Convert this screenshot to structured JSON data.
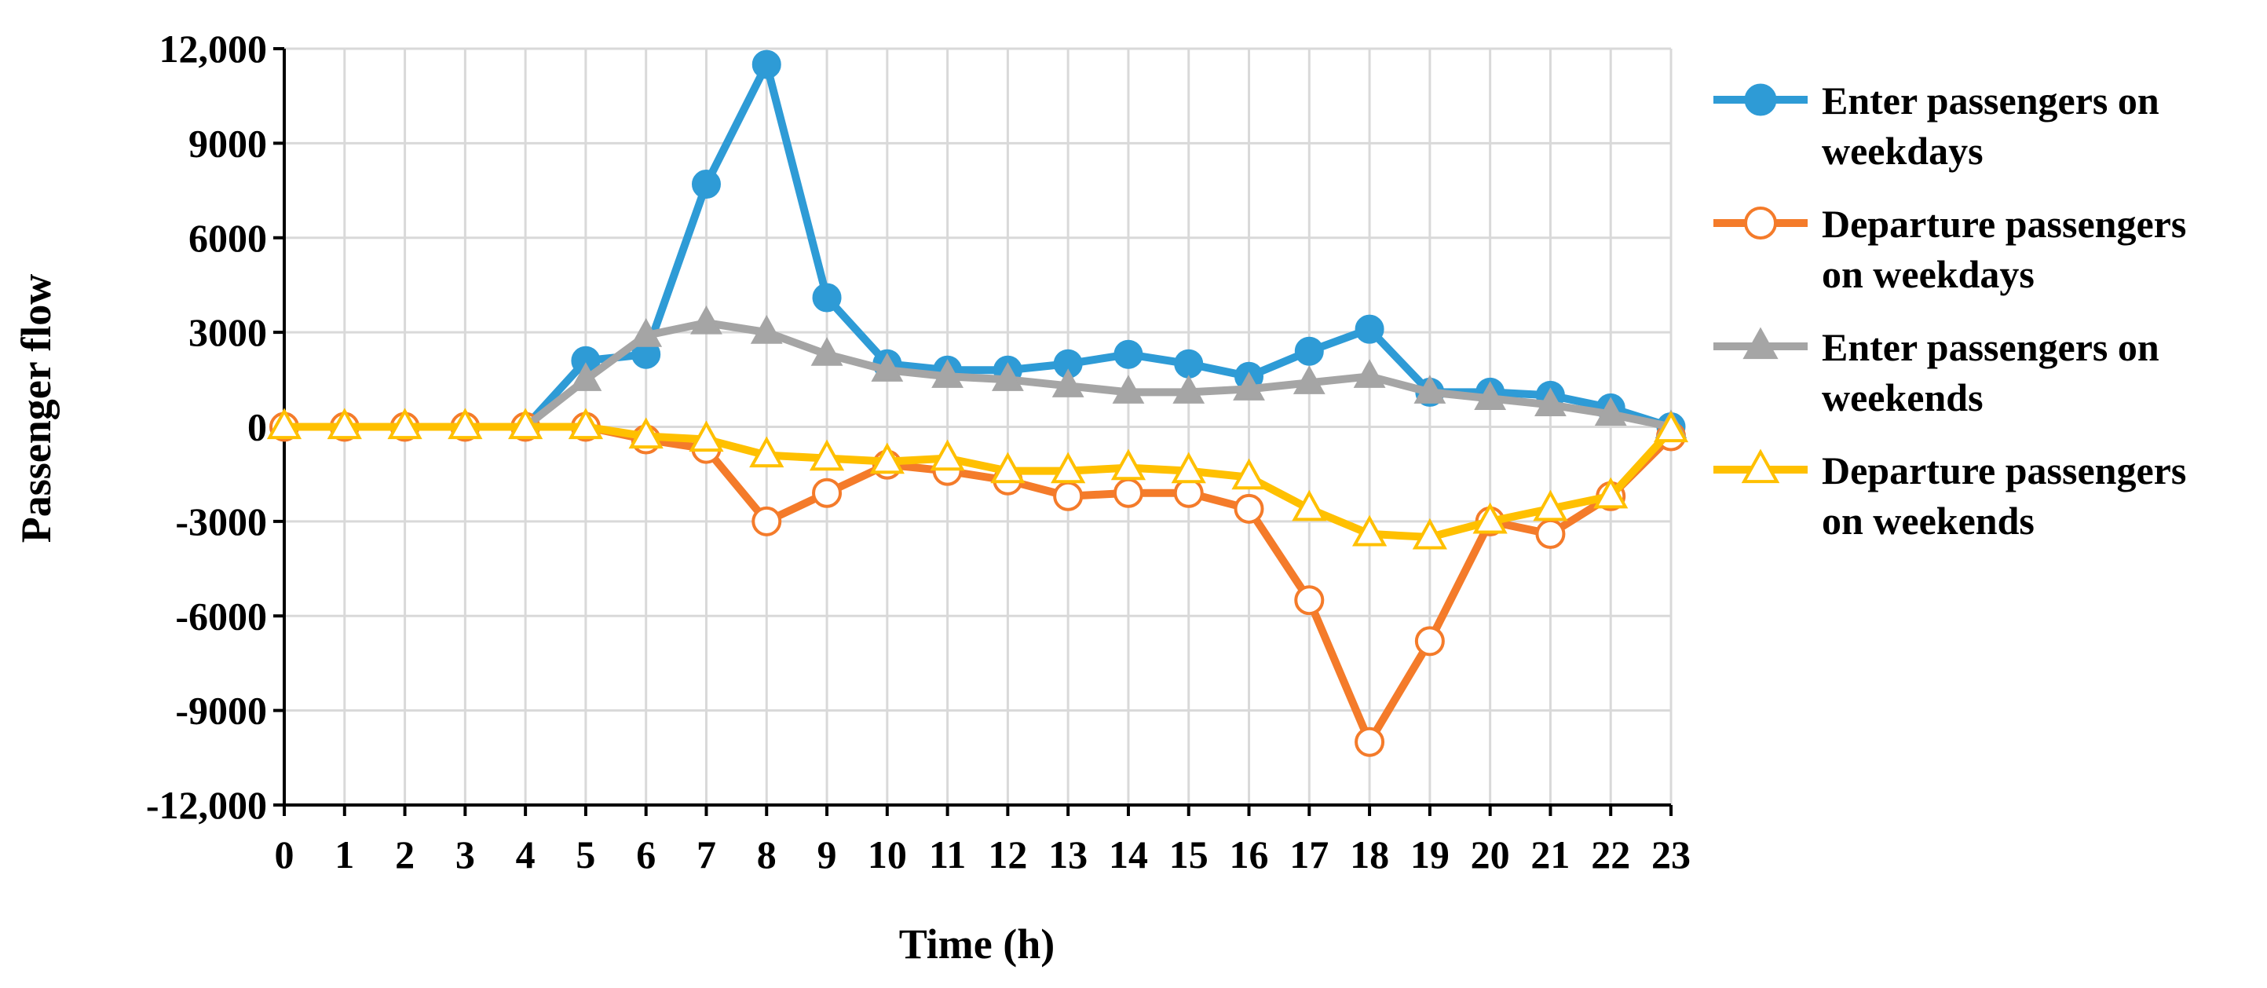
{
  "chart_data": {
    "type": "line",
    "title": "",
    "xlabel": "Time (h)",
    "ylabel": "Passenger flow",
    "x": [
      0,
      1,
      2,
      3,
      4,
      5,
      6,
      7,
      8,
      9,
      10,
      11,
      12,
      13,
      14,
      15,
      16,
      17,
      18,
      19,
      20,
      21,
      22,
      23
    ],
    "ylim": [
      -12000,
      12000
    ],
    "yticks": [
      12000,
      9000,
      6000,
      3000,
      0,
      -3000,
      -6000,
      -9000,
      -12000
    ],
    "ytick_labels": [
      "12,000",
      "9000",
      "6000",
      "3000",
      "0",
      "-3000",
      "-6000",
      "-9000",
      "-12,000"
    ],
    "grid": true,
    "legend_position": "right",
    "series": [
      {
        "name": "Enter passengers on weekdays",
        "legend_lines": [
          "Enter passengers on",
          "weekdays"
        ],
        "color": "#2E9BD6",
        "marker": "circle-filled",
        "values": [
          0,
          0,
          0,
          0,
          0,
          2100,
          2300,
          7700,
          11500,
          4100,
          2000,
          1800,
          1800,
          2000,
          2300,
          2000,
          1600,
          2400,
          3100,
          1100,
          1100,
          1000,
          600,
          0
        ]
      },
      {
        "name": "Departure passengers on weekdays",
        "legend_lines": [
          "Departure passengers",
          "on weekdays"
        ],
        "color": "#F47B2A",
        "marker": "circle-open",
        "values": [
          0,
          0,
          0,
          0,
          0,
          0,
          -400,
          -700,
          -3000,
          -2100,
          -1200,
          -1400,
          -1700,
          -2200,
          -2100,
          -2100,
          -2600,
          -5500,
          -10000,
          -6800,
          -3000,
          -3400,
          -2200,
          -300
        ]
      },
      {
        "name": "Enter passengers on weekends",
        "legend_lines": [
          "Enter passengers on",
          "weekends"
        ],
        "color": "#A5A5A5",
        "marker": "triangle-filled",
        "values": [
          0,
          0,
          0,
          0,
          0,
          1500,
          2900,
          3300,
          3000,
          2300,
          1800,
          1600,
          1500,
          1300,
          1100,
          1100,
          1200,
          1400,
          1600,
          1100,
          900,
          700,
          400,
          0
        ]
      },
      {
        "name": "Departure passengers on weekends",
        "legend_lines": [
          "Departure passengers",
          "on weekends"
        ],
        "color": "#FFC000",
        "marker": "triangle-open",
        "values": [
          0,
          0,
          0,
          0,
          0,
          0,
          -300,
          -400,
          -900,
          -1000,
          -1100,
          -1000,
          -1400,
          -1400,
          -1300,
          -1400,
          -1600,
          -2600,
          -3400,
          -3500,
          -3000,
          -2600,
          -2200,
          -100
        ]
      }
    ]
  }
}
